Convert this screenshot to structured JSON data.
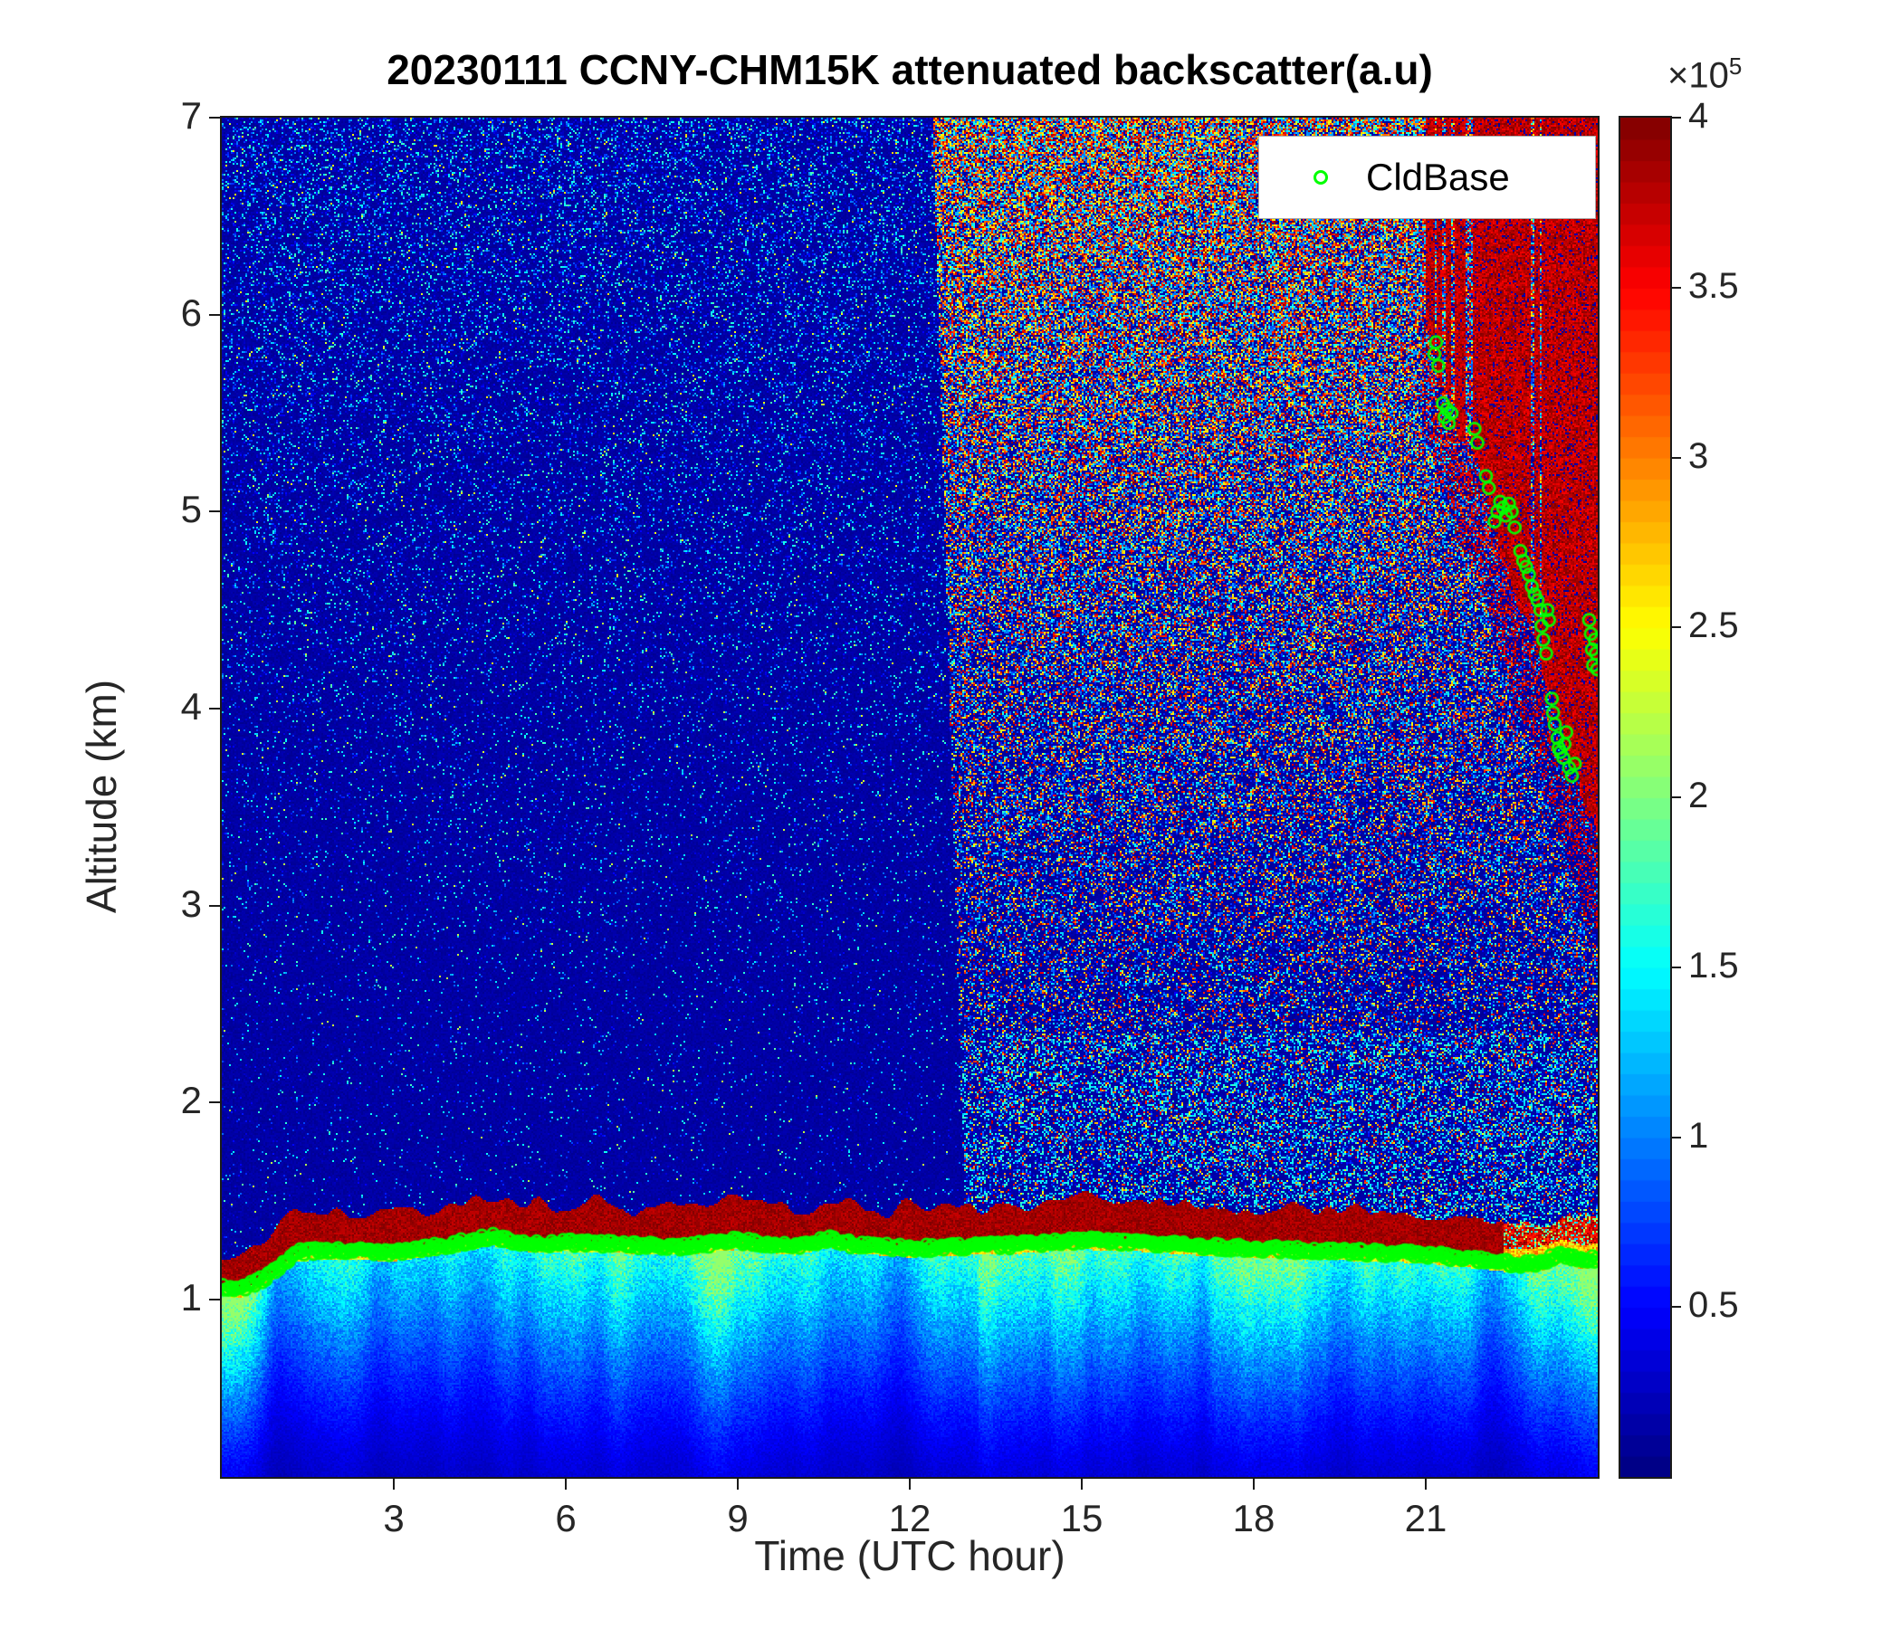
{
  "chart_data": {
    "type": "heatmap",
    "title": "20230111 CCNY-CHM15K attenuated backscatter(a.u)",
    "xlabel": "Time (UTC hour)",
    "ylabel": "Altitude (km)",
    "x_range_utc_hour": [
      0,
      24
    ],
    "y_range_km": [
      0.1,
      7
    ],
    "xticks": [
      3,
      6,
      9,
      12,
      15,
      18,
      21
    ],
    "yticks": [
      1,
      2,
      3,
      4,
      5,
      6,
      7
    ],
    "grid": false,
    "colorbar": {
      "colormap": "jet",
      "value_range": [
        0,
        400000
      ],
      "ticks": [
        0.5,
        1,
        1.5,
        2,
        2.5,
        3,
        3.5,
        4
      ],
      "exponent_prefix": "×10",
      "exponent": "5"
    },
    "legend": [
      {
        "label": "CldBase",
        "marker": "open-circle",
        "color": "#00ff00",
        "position": "northeast-inside"
      }
    ],
    "series": [
      {
        "name": "low_cloud_base_km",
        "x_utc_hour": [
          0,
          0.3,
          0.7,
          1.0,
          1.3,
          2,
          3,
          4,
          4.7,
          5.5,
          6,
          7,
          8,
          9,
          10,
          10.6,
          11,
          12,
          13,
          14,
          15,
          16,
          17,
          18,
          19,
          20,
          21,
          22,
          22.6,
          23,
          23.4,
          23.7,
          24
        ],
        "y_km": [
          1.07,
          1.05,
          1.1,
          1.17,
          1.24,
          1.25,
          1.24,
          1.28,
          1.32,
          1.28,
          1.29,
          1.28,
          1.27,
          1.3,
          1.27,
          1.31,
          1.28,
          1.26,
          1.27,
          1.28,
          1.3,
          1.29,
          1.27,
          1.26,
          1.25,
          1.24,
          1.23,
          1.2,
          1.18,
          1.19,
          1.23,
          1.2,
          1.21
        ]
      },
      {
        "name": "high_cloud_base_km",
        "points": [
          [
            21.15,
            5.8
          ],
          [
            21.18,
            5.86
          ],
          [
            21.22,
            5.74
          ],
          [
            21.3,
            5.55
          ],
          [
            21.33,
            5.48
          ],
          [
            21.37,
            5.52
          ],
          [
            21.4,
            5.45
          ],
          [
            21.45,
            5.5
          ],
          [
            21.85,
            5.42
          ],
          [
            21.9,
            5.35
          ],
          [
            22.05,
            5.18
          ],
          [
            22.1,
            5.12
          ],
          [
            22.2,
            4.95
          ],
          [
            22.25,
            5.0
          ],
          [
            22.3,
            5.05
          ],
          [
            22.35,
            5.02
          ],
          [
            22.4,
            4.98
          ],
          [
            22.45,
            5.04
          ],
          [
            22.5,
            5.0
          ],
          [
            22.55,
            4.92
          ],
          [
            22.65,
            4.8
          ],
          [
            22.7,
            4.75
          ],
          [
            22.75,
            4.72
          ],
          [
            22.8,
            4.68
          ],
          [
            22.85,
            4.62
          ],
          [
            22.9,
            4.58
          ],
          [
            22.95,
            4.55
          ],
          [
            23.0,
            4.5
          ],
          [
            23.02,
            4.42
          ],
          [
            23.05,
            4.35
          ],
          [
            23.1,
            4.28
          ],
          [
            23.12,
            4.5
          ],
          [
            23.15,
            4.45
          ],
          [
            23.2,
            4.05
          ],
          [
            23.22,
            3.98
          ],
          [
            23.25,
            3.92
          ],
          [
            23.3,
            3.85
          ],
          [
            23.32,
            3.8
          ],
          [
            23.35,
            3.78
          ],
          [
            23.4,
            3.75
          ],
          [
            23.42,
            3.82
          ],
          [
            23.45,
            3.88
          ],
          [
            23.5,
            3.7
          ],
          [
            23.55,
            3.66
          ],
          [
            23.6,
            3.72
          ],
          [
            23.85,
            4.45
          ],
          [
            23.88,
            4.38
          ],
          [
            23.9,
            4.3
          ],
          [
            23.92,
            4.22
          ],
          [
            23.95,
            4.35
          ],
          [
            23.97,
            4.28
          ],
          [
            23.99,
            4.2
          ]
        ]
      }
    ],
    "regions": [
      {
        "name": "persistent_low_cloud",
        "time_utc": [
          0,
          24
        ],
        "altitude_km": [
          1.15,
          1.5
        ],
        "backscatter": "saturated, >4e5 (dark red band)"
      },
      {
        "name": "boundary_layer_aerosol",
        "time_utc": [
          0,
          24
        ],
        "altitude_km": [
          0.1,
          1.15
        ],
        "backscatter": "0.3e5 - 1.5e5 (blue to cyan)"
      },
      {
        "name": "clean_background_noise",
        "time_utc": [
          0,
          12.5
        ],
        "altitude_km": [
          1.5,
          7
        ],
        "backscatter": "low noise speckle, mostly <1e5"
      },
      {
        "name": "enhanced_daytime_noise",
        "time_utc": [
          12.5,
          21.5
        ],
        "altitude_km": [
          1.8,
          7
        ],
        "backscatter": "dense speckle noise up to 4e5 (red/orange mixed with blue)"
      },
      {
        "name": "high_cloud_virga",
        "time_utc": [
          21,
          24
        ],
        "altitude_km": [
          3.3,
          7
        ],
        "backscatter": "saturated dark-red streaks, base descending 5.9 to 3.3 km"
      }
    ]
  }
}
